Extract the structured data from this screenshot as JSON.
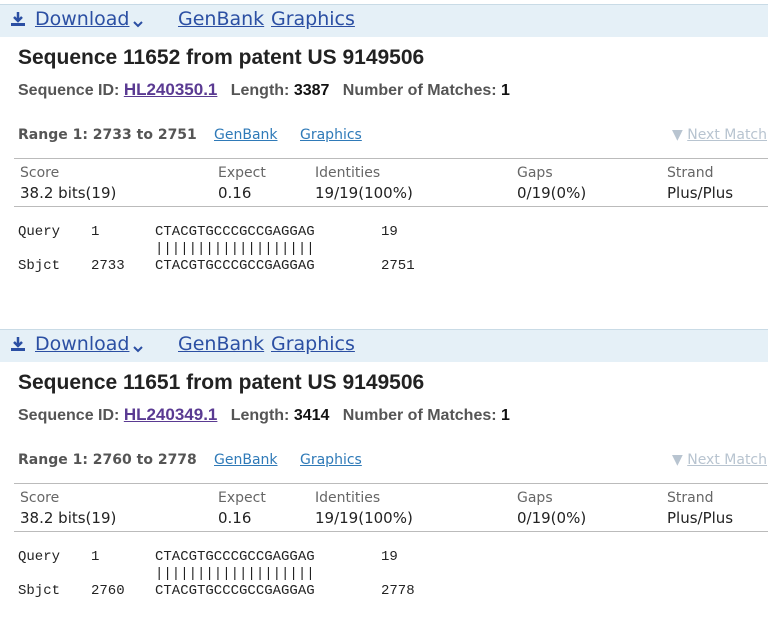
{
  "results": [
    {
      "toolbar": {
        "download": "Download",
        "genbank": "GenBank",
        "graphics": "Graphics"
      },
      "title": "Sequence 11652 from patent US 9149506",
      "seq_id_label": "Sequence ID:",
      "seq_id": "HL240350.1",
      "length_label": "Length:",
      "length": 3387,
      "matches_label": "Number of Matches:",
      "matches": 1,
      "range": "Range 1: 2733 to 2751",
      "range_links": [
        "GenBank",
        "Graphics"
      ],
      "next_match": "Next Match",
      "table": {
        "headers": [
          "Score",
          "Expect",
          "Identities",
          "Gaps",
          "Strand"
        ],
        "values": [
          "38.2 bits(19)",
          "0.16",
          "19/19(100%)",
          "0/19(0%)",
          "Plus/Plus"
        ]
      },
      "alignment": {
        "query": {
          "label": "Query",
          "start": 1,
          "seq": "CTACGTGCCCGCCGAGGAG",
          "end": 19
        },
        "match": "|||||||||||||||||||",
        "sbjct": {
          "label": "Sbjct",
          "start": 2733,
          "seq": "CTACGTGCCCGCCGAGGAG",
          "end": 2751
        }
      }
    },
    {
      "toolbar": {
        "download": "Download",
        "genbank": "GenBank",
        "graphics": "Graphics"
      },
      "title": "Sequence 11651 from patent US 9149506",
      "seq_id_label": "Sequence ID:",
      "seq_id": "HL240349.1",
      "length_label": "Length:",
      "length": 3414,
      "matches_label": "Number of Matches:",
      "matches": 1,
      "range": "Range 1: 2760 to 2778",
      "range_links": [
        "GenBank",
        "Graphics"
      ],
      "next_match": "Next Match",
      "table": {
        "headers": [
          "Score",
          "Expect",
          "Identities",
          "Gaps",
          "Strand"
        ],
        "values": [
          "38.2 bits(19)",
          "0.16",
          "19/19(100%)",
          "0/19(0%)",
          "Plus/Plus"
        ]
      },
      "alignment": {
        "query": {
          "label": "Query",
          "start": 1,
          "seq": "CTACGTGCCCGCCGAGGAG",
          "end": 19
        },
        "match": "|||||||||||||||||||",
        "sbjct": {
          "label": "Sbjct",
          "start": 2760,
          "seq": "CTACGTGCCCGCCGAGGAG",
          "end": 2778
        }
      }
    }
  ]
}
